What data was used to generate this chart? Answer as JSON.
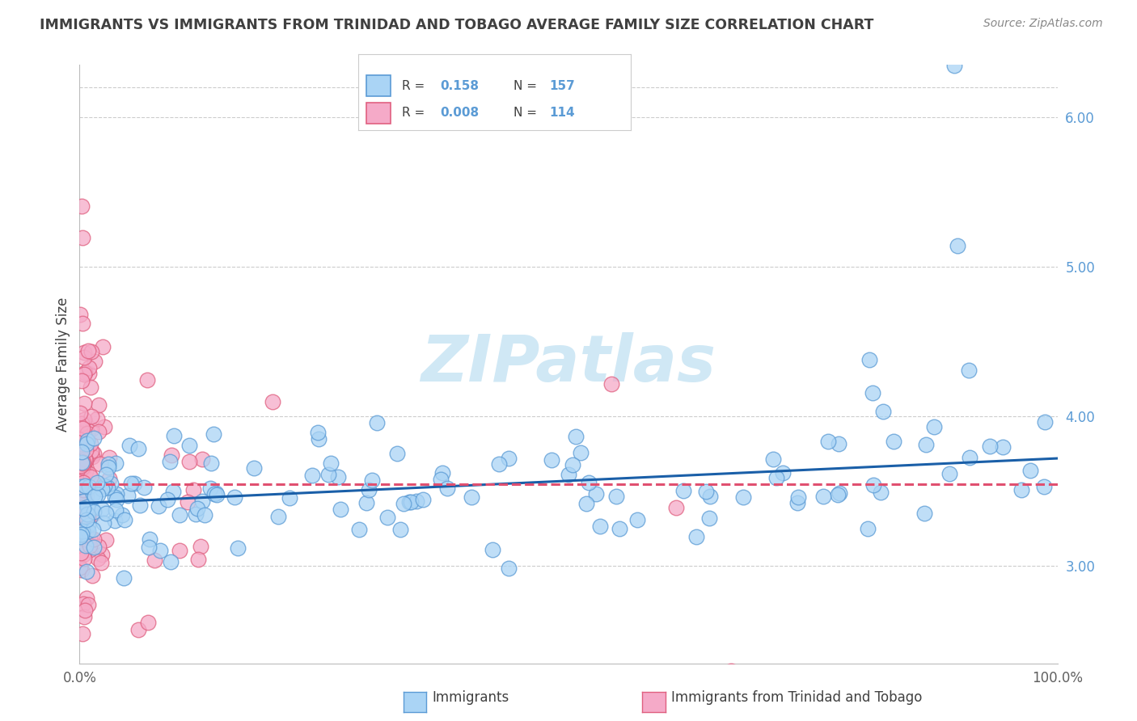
{
  "title": "IMMIGRANTS VS IMMIGRANTS FROM TRINIDAD AND TOBAGO AVERAGE FAMILY SIZE CORRELATION CHART",
  "source": "Source: ZipAtlas.com",
  "ylabel": "Average Family Size",
  "xlim": [
    0.0,
    100.0
  ],
  "ylim": [
    2.35,
    6.35
  ],
  "yticks": [
    3.0,
    4.0,
    5.0,
    6.0
  ],
  "background_color": "#ffffff",
  "grid_color": "#cccccc",
  "blue_fill": "#aad4f5",
  "blue_edge": "#5b9bd5",
  "pink_fill": "#f5aac8",
  "pink_edge": "#e06080",
  "trend_blue_color": "#1a5fa8",
  "trend_pink_color": "#e05070",
  "title_color": "#404040",
  "source_color": "#888888",
  "ylabel_color": "#404040",
  "ytick_color": "#5b9bd5",
  "watermark_color": "#d0e8f5",
  "legend_R_blue": "0.158",
  "legend_N_blue": "157",
  "legend_R_pink": "0.008",
  "legend_N_pink": "114",
  "legend_text_color": "#404040",
  "legend_val_color": "#5b9bd5"
}
